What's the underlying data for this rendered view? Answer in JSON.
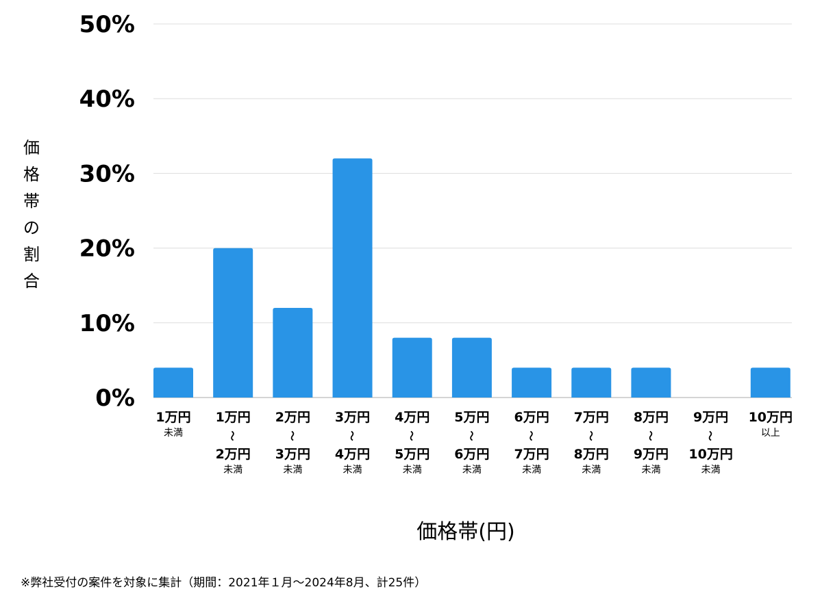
{
  "chart_data": {
    "type": "bar",
    "title": "",
    "xlabel": "価格帯(円)",
    "ylabel": "価格帯の割合",
    "ylim": [
      0,
      50
    ],
    "yticks": [
      "0%",
      "10%",
      "20%",
      "30%",
      "40%",
      "50%"
    ],
    "grid": true,
    "bar_color": "#2994e6",
    "range_mark": "〜",
    "categories": [
      {
        "from": "1万円",
        "to": "",
        "suffix": "未満"
      },
      {
        "from": "1万円",
        "to": "2万円",
        "suffix": "未満"
      },
      {
        "from": "2万円",
        "to": "3万円",
        "suffix": "未満"
      },
      {
        "from": "3万円",
        "to": "4万円",
        "suffix": "未満"
      },
      {
        "from": "4万円",
        "to": "5万円",
        "suffix": "未満"
      },
      {
        "from": "5万円",
        "to": "6万円",
        "suffix": "未満"
      },
      {
        "from": "6万円",
        "to": "7万円",
        "suffix": "未満"
      },
      {
        "from": "7万円",
        "to": "8万円",
        "suffix": "未満"
      },
      {
        "from": "8万円",
        "to": "9万円",
        "suffix": "未満"
      },
      {
        "from": "9万円",
        "to": "10万円",
        "suffix": "未満"
      },
      {
        "from": "10万円",
        "to": "",
        "suffix": "以上"
      }
    ],
    "values": [
      4,
      20,
      12,
      32,
      8,
      8,
      4,
      4,
      4,
      0,
      4
    ]
  },
  "footnote": "※弊社受付の案件を対象に集計（期間：2021年１月〜2024年8月、計25件）"
}
